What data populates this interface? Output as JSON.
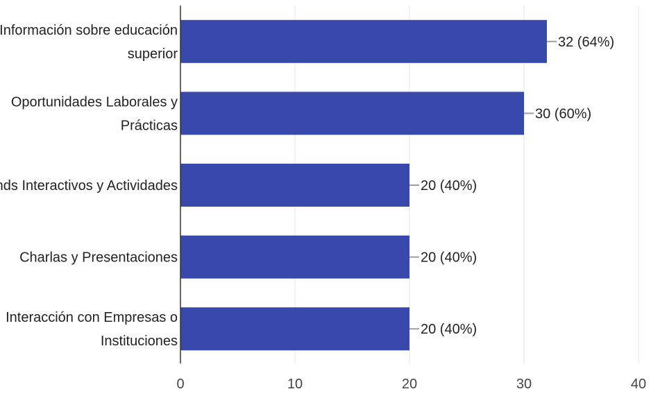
{
  "chart_data": {
    "type": "bar",
    "orientation": "horizontal",
    "categories": [
      [
        "Información sobre educación",
        "superior"
      ],
      [
        "Oportunidades Laborales y",
        "Prácticas"
      ],
      [
        "Stands Interactivos y Actividades"
      ],
      [
        "Charlas y Presentaciones"
      ],
      [
        "Interacción con Empresas o",
        "Instituciones"
      ]
    ],
    "values": [
      32,
      30,
      20,
      20,
      20
    ],
    "data_labels": [
      "32 (64%)",
      "30 (60%)",
      "20 (40%)",
      "20 (40%)",
      "20 (40%)"
    ],
    "xlim": [
      0,
      40
    ],
    "xticks": [
      0,
      10,
      20,
      30,
      40
    ],
    "grid": "vertical",
    "legend": "none",
    "colors": {
      "bar": "#3949AB",
      "grid": "#E6E6E6",
      "axis": "#333333",
      "leader": "#9E9E9E"
    }
  }
}
